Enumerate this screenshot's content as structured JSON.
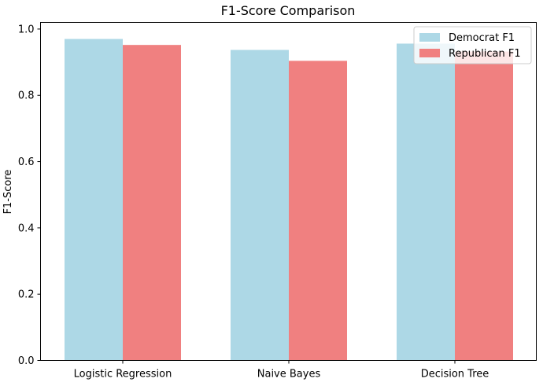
{
  "chart_data": {
    "type": "bar",
    "title": "F1-Score Comparison",
    "xlabel": "",
    "ylabel": "F1-Score",
    "categories": [
      "Logistic Regression",
      "Naive Bayes",
      "Decision Tree"
    ],
    "series": [
      {
        "name": "Democrat F1",
        "color": "#add8e6",
        "values": [
          0.97,
          0.937,
          0.956
        ]
      },
      {
        "name": "Republican F1",
        "color": "#f08080",
        "values": [
          0.952,
          0.904,
          0.932
        ]
      }
    ],
    "ylim": [
      0,
      1.02
    ],
    "yticks": [
      "0.0",
      "0.2",
      "0.4",
      "0.6",
      "0.8",
      "1.0"
    ],
    "grid": false,
    "legend_position": "top-right"
  }
}
